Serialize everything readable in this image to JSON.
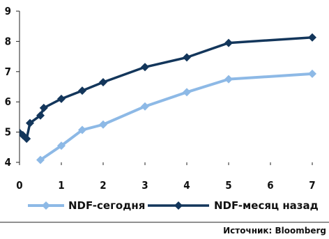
{
  "chart_data": {
    "type": "line",
    "x_ticks": [
      "0",
      "1",
      "2",
      "3",
      "4",
      "5",
      "6",
      "7"
    ],
    "y_ticks": [
      "4",
      "5",
      "6",
      "7",
      "8",
      "9"
    ],
    "xlim": [
      0,
      7
    ],
    "ylim": [
      4,
      9
    ],
    "grid": false,
    "legend_position": "bottom",
    "series": [
      {
        "name": "NDF-сегодня",
        "color": "#8DB9E6",
        "marker": "diamond",
        "x": [
          0.5,
          1.0,
          1.5,
          2.0,
          3.0,
          4.0,
          5.0,
          7.0
        ],
        "y": [
          4.08,
          4.55,
          5.07,
          5.25,
          5.85,
          6.32,
          6.75,
          6.93
        ]
      },
      {
        "name": "NDF-месяц назад",
        "color": "#13365B",
        "marker": "diamond",
        "x": [
          0.0,
          0.08,
          0.17,
          0.25,
          0.5,
          0.58,
          1.0,
          1.5,
          2.0,
          3.0,
          4.0,
          5.0,
          7.0
        ],
        "y": [
          4.98,
          4.9,
          4.78,
          5.3,
          5.55,
          5.8,
          6.1,
          6.37,
          6.65,
          7.15,
          7.47,
          7.95,
          8.13
        ]
      }
    ]
  },
  "source": "Источник:  Bloomberg"
}
